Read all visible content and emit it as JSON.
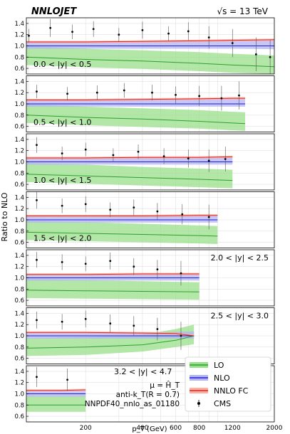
{
  "header": {
    "brand": "NNLOJET",
    "energy_prefix": "√s = 13 TeV"
  },
  "axes": {
    "ylabel": "Ratio to NLO",
    "xlabel": "p_T (GeV)",
    "x_ticks": [
      "200",
      "400",
      "600",
      "800",
      "1200",
      "2000"
    ],
    "y_ticks": [
      "0.6",
      "0.8",
      "1.0",
      "1.2",
      "1.4"
    ]
  },
  "legend": {
    "entries": [
      {
        "label": "LO",
        "color": "#2ca02c",
        "fill": "#98df8a",
        "kind": "band"
      },
      {
        "label": "NLO",
        "color": "#1f1fd6",
        "fill": "#b3b3f5",
        "kind": "band"
      },
      {
        "label": "NNLO FC",
        "color": "#d62728",
        "fill": "#ffb0a0",
        "kind": "band"
      },
      {
        "label": "CMS",
        "color": "#000000",
        "kind": "errorbar"
      }
    ],
    "notes": [
      "μ = Ĥ_T",
      "anti-k_T(R = 0.7)",
      "NNPDF40_nnlo_as_01180"
    ]
  },
  "chart_data": {
    "type": "line",
    "title": "",
    "xlabel": "p_T (GeV)",
    "ylabel": "Ratio to NLO",
    "xscale": "log",
    "xlim": [
      97,
      2000
    ],
    "ylim": [
      0.5,
      1.5
    ],
    "grid": true,
    "legend_position": "bottom-right panel",
    "colors": {
      "LO": "#2ca02c",
      "NLO": "#1f1fd6",
      "NNLO FC": "#d62728",
      "CMS": "#000000"
    },
    "panels": [
      {
        "label": "0.0 < |y| < 0.5",
        "x": [
          97,
          200,
          400,
          800,
          1200,
          2000
        ],
        "series": [
          {
            "name": "LO",
            "values": [
              0.8,
              0.76,
              0.73,
              0.69,
              0.66,
              0.63
            ],
            "band_low": [
              0.66,
              0.62,
              0.59,
              0.55,
              0.52,
              0.5
            ],
            "band_high": [
              1.0,
              0.95,
              0.92,
              0.89,
              0.86,
              0.83
            ]
          },
          {
            "name": "NLO",
            "values": [
              1.0,
              1.0,
              1.0,
              1.0,
              1.0,
              1.0
            ],
            "band_low": [
              0.95,
              0.95,
              0.95,
              0.95,
              0.95,
              0.94
            ],
            "band_high": [
              1.08,
              1.08,
              1.08,
              1.08,
              1.09,
              1.1
            ]
          },
          {
            "name": "NNLO FC",
            "values": [
              1.07,
              1.07,
              1.08,
              1.09,
              1.1,
              1.11
            ],
            "band_low": [
              1.05,
              1.05,
              1.06,
              1.07,
              1.08,
              1.09
            ],
            "band_high": [
              1.09,
              1.09,
              1.1,
              1.11,
              1.12,
              1.13
            ]
          }
        ],
        "cms": [
          {
            "x": 100,
            "y": 1.18,
            "err": 0.12
          },
          {
            "x": 130,
            "y": 1.32,
            "err": 0.16
          },
          {
            "x": 170,
            "y": 1.25,
            "err": 0.13
          },
          {
            "x": 220,
            "y": 1.3,
            "err": 0.14
          },
          {
            "x": 300,
            "y": 1.2,
            "err": 0.12
          },
          {
            "x": 400,
            "y": 1.28,
            "err": 0.15
          },
          {
            "x": 550,
            "y": 1.22,
            "err": 0.13
          },
          {
            "x": 700,
            "y": 1.26,
            "err": 0.16
          },
          {
            "x": 900,
            "y": 1.15,
            "err": 0.2
          },
          {
            "x": 1200,
            "y": 1.05,
            "err": 0.25
          },
          {
            "x": 1600,
            "y": 0.85,
            "err": 0.3
          },
          {
            "x": 1900,
            "y": 0.8,
            "err": 0.3
          }
        ]
      },
      {
        "label": "0.5 < |y| < 1.0",
        "x": [
          97,
          200,
          400,
          800,
          1200,
          1400
        ],
        "series": [
          {
            "name": "LO",
            "values": [
              0.8,
              0.76,
              0.73,
              0.69,
              0.66,
              0.65
            ],
            "band_low": [
              0.66,
              0.62,
              0.59,
              0.56,
              0.53,
              0.52
            ],
            "band_high": [
              1.0,
              0.95,
              0.92,
              0.89,
              0.86,
              0.85
            ]
          },
          {
            "name": "NLO",
            "values": [
              1.0,
              1.0,
              1.0,
              1.0,
              1.0,
              1.0
            ],
            "band_low": [
              0.95,
              0.95,
              0.95,
              0.95,
              0.95,
              0.95
            ],
            "band_high": [
              1.08,
              1.08,
              1.08,
              1.08,
              1.09,
              1.09
            ]
          },
          {
            "name": "NNLO FC",
            "values": [
              1.07,
              1.07,
              1.08,
              1.09,
              1.1,
              1.1
            ],
            "band_low": [
              1.05,
              1.05,
              1.06,
              1.07,
              1.08,
              1.08
            ],
            "band_high": [
              1.09,
              1.09,
              1.1,
              1.11,
              1.12,
              1.12
            ]
          }
        ],
        "cms": [
          {
            "x": 110,
            "y": 1.22,
            "err": 0.12
          },
          {
            "x": 160,
            "y": 1.18,
            "err": 0.12
          },
          {
            "x": 230,
            "y": 1.2,
            "err": 0.13
          },
          {
            "x": 320,
            "y": 1.24,
            "err": 0.13
          },
          {
            "x": 450,
            "y": 1.2,
            "err": 0.14
          },
          {
            "x": 600,
            "y": 1.16,
            "err": 0.15
          },
          {
            "x": 800,
            "y": 1.14,
            "err": 0.18
          },
          {
            "x": 1050,
            "y": 1.1,
            "err": 0.22
          },
          {
            "x": 1300,
            "y": 1.15,
            "err": 0.25
          }
        ]
      },
      {
        "label": "1.0 < |y| < 1.5",
        "x": [
          97,
          200,
          400,
          800,
          1200
        ],
        "series": [
          {
            "name": "LO",
            "values": [
              0.78,
              0.75,
              0.72,
              0.69,
              0.67
            ],
            "band_low": [
              0.64,
              0.61,
              0.58,
              0.55,
              0.53
            ],
            "band_high": [
              0.98,
              0.95,
              0.91,
              0.88,
              0.86
            ]
          },
          {
            "name": "NLO",
            "values": [
              1.0,
              1.0,
              1.0,
              1.0,
              1.0
            ],
            "band_low": [
              0.95,
              0.95,
              0.95,
              0.95,
              0.95
            ],
            "band_high": [
              1.07,
              1.07,
              1.07,
              1.07,
              1.08
            ]
          },
          {
            "name": "NNLO FC",
            "values": [
              1.07,
              1.07,
              1.08,
              1.08,
              1.09
            ],
            "band_low": [
              1.05,
              1.05,
              1.06,
              1.06,
              1.07
            ],
            "band_high": [
              1.09,
              1.09,
              1.1,
              1.1,
              1.11
            ]
          }
        ],
        "cms": [
          {
            "x": 110,
            "y": 1.3,
            "err": 0.14
          },
          {
            "x": 150,
            "y": 1.15,
            "err": 0.12
          },
          {
            "x": 200,
            "y": 1.22,
            "err": 0.12
          },
          {
            "x": 280,
            "y": 1.12,
            "err": 0.12
          },
          {
            "x": 380,
            "y": 1.18,
            "err": 0.13
          },
          {
            "x": 520,
            "y": 1.1,
            "err": 0.14
          },
          {
            "x": 700,
            "y": 1.06,
            "err": 0.16
          },
          {
            "x": 900,
            "y": 1.02,
            "err": 0.2
          },
          {
            "x": 1100,
            "y": 1.05,
            "err": 0.22
          }
        ]
      },
      {
        "label": "1.5 < |y| < 2.0",
        "x": [
          97,
          200,
          400,
          800,
          1000
        ],
        "series": [
          {
            "name": "LO",
            "values": [
              0.78,
              0.76,
              0.74,
              0.72,
              0.71
            ],
            "band_low": [
              0.64,
              0.62,
              0.6,
              0.58,
              0.57
            ],
            "band_high": [
              0.98,
              0.96,
              0.93,
              0.9,
              0.89
            ]
          },
          {
            "name": "NLO",
            "values": [
              1.0,
              1.0,
              1.0,
              1.0,
              1.0
            ],
            "band_low": [
              0.95,
              0.95,
              0.95,
              0.95,
              0.95
            ],
            "band_high": [
              1.06,
              1.06,
              1.07,
              1.07,
              1.07
            ]
          },
          {
            "name": "NNLO FC",
            "values": [
              1.07,
              1.07,
              1.07,
              1.08,
              1.08
            ],
            "band_low": [
              1.05,
              1.05,
              1.05,
              1.06,
              1.06
            ],
            "band_high": [
              1.09,
              1.09,
              1.09,
              1.1,
              1.1
            ]
          }
        ],
        "cms": [
          {
            "x": 110,
            "y": 1.35,
            "err": 0.15
          },
          {
            "x": 150,
            "y": 1.25,
            "err": 0.13
          },
          {
            "x": 200,
            "y": 1.28,
            "err": 0.14
          },
          {
            "x": 270,
            "y": 1.18,
            "err": 0.13
          },
          {
            "x": 360,
            "y": 1.22,
            "err": 0.14
          },
          {
            "x": 480,
            "y": 1.15,
            "err": 0.15
          },
          {
            "x": 650,
            "y": 1.1,
            "err": 0.18
          },
          {
            "x": 900,
            "y": 1.05,
            "err": 0.22
          }
        ]
      },
      {
        "label": "2.0 < |y| < 2.5",
        "x": [
          97,
          200,
          400,
          800
        ],
        "series": [
          {
            "name": "LO",
            "values": [
              0.78,
              0.77,
              0.76,
              0.75
            ],
            "band_low": [
              0.64,
              0.63,
              0.62,
              0.61
            ],
            "band_high": [
              0.98,
              0.96,
              0.94,
              0.92
            ]
          },
          {
            "name": "NLO",
            "values": [
              1.0,
              1.0,
              1.0,
              1.0
            ],
            "band_low": [
              0.95,
              0.95,
              0.95,
              0.95
            ],
            "band_high": [
              1.06,
              1.06,
              1.06,
              1.06
            ]
          },
          {
            "name": "NNLO FC",
            "values": [
              1.06,
              1.06,
              1.07,
              1.07
            ],
            "band_low": [
              1.04,
              1.04,
              1.05,
              1.05
            ],
            "band_high": [
              1.08,
              1.08,
              1.09,
              1.09
            ]
          }
        ],
        "cms": [
          {
            "x": 110,
            "y": 1.32,
            "err": 0.14
          },
          {
            "x": 150,
            "y": 1.28,
            "err": 0.14
          },
          {
            "x": 200,
            "y": 1.25,
            "err": 0.13
          },
          {
            "x": 270,
            "y": 1.3,
            "err": 0.15
          },
          {
            "x": 360,
            "y": 1.2,
            "err": 0.15
          },
          {
            "x": 480,
            "y": 1.15,
            "err": 0.17
          },
          {
            "x": 640,
            "y": 1.08,
            "err": 0.22
          }
        ]
      },
      {
        "label": "2.5 < |y| < 3.0",
        "x": [
          97,
          200,
          400,
          600,
          750
        ],
        "series": [
          {
            "name": "LO",
            "values": [
              0.78,
              0.8,
              0.84,
              0.92,
              1.0
            ],
            "band_low": [
              0.64,
              0.66,
              0.72,
              0.8,
              0.85
            ],
            "band_high": [
              0.96,
              0.98,
              1.02,
              1.12,
              1.2
            ]
          },
          {
            "name": "NLO",
            "values": [
              1.0,
              1.0,
              1.0,
              1.0,
              1.0
            ],
            "band_low": [
              0.95,
              0.95,
              0.95,
              0.95,
              0.95
            ],
            "band_high": [
              1.06,
              1.06,
              1.06,
              1.07,
              1.08
            ]
          },
          {
            "name": "NNLO FC",
            "values": [
              1.06,
              1.06,
              1.05,
              1.04,
              1.0
            ],
            "band_low": [
              1.04,
              1.04,
              1.03,
              1.02,
              0.98
            ],
            "band_high": [
              1.08,
              1.08,
              1.07,
              1.06,
              1.02
            ]
          }
        ],
        "cms": [
          {
            "x": 110,
            "y": 1.28,
            "err": 0.15
          },
          {
            "x": 150,
            "y": 1.25,
            "err": 0.14
          },
          {
            "x": 200,
            "y": 1.3,
            "err": 0.15
          },
          {
            "x": 270,
            "y": 1.22,
            "err": 0.16
          },
          {
            "x": 360,
            "y": 1.18,
            "err": 0.17
          },
          {
            "x": 480,
            "y": 1.12,
            "err": 0.2
          },
          {
            "x": 640,
            "y": 1.0,
            "err": 0.25
          }
        ]
      },
      {
        "label": "3.2 < |y| < 4.7",
        "x": [
          97,
          150,
          200
        ],
        "series": [
          {
            "name": "LO",
            "values": [
              0.8,
              0.8,
              0.8
            ],
            "band_low": [
              0.68,
              0.68,
              0.68
            ],
            "band_high": [
              0.96,
              0.96,
              0.96
            ]
          },
          {
            "name": "NLO",
            "values": [
              1.0,
              1.0,
              1.0
            ],
            "band_low": [
              0.95,
              0.95,
              0.95
            ],
            "band_high": [
              1.05,
              1.05,
              1.05
            ]
          },
          {
            "name": "NNLO FC",
            "values": [
              1.06,
              1.06,
              1.07
            ],
            "band_low": [
              1.04,
              1.04,
              1.05
            ],
            "band_high": [
              1.08,
              1.08,
              1.09
            ]
          }
        ],
        "cms": [
          {
            "x": 110,
            "y": 1.3,
            "err": 0.18
          },
          {
            "x": 160,
            "y": 1.25,
            "err": 0.2
          }
        ]
      }
    ]
  }
}
